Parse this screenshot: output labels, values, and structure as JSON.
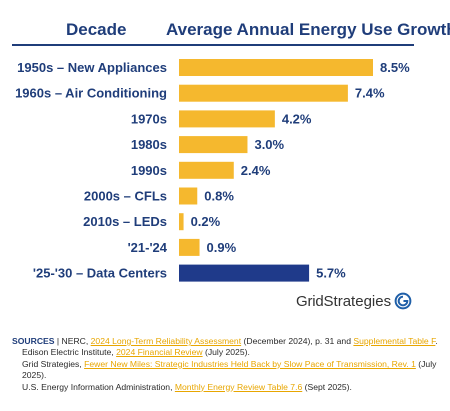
{
  "header": {
    "col1": "Decade",
    "col2": "Average Annual Energy Use Growth"
  },
  "colors": {
    "bar": "#f5b82e",
    "highlight": "#1f3a8a",
    "text": "#1f3d7a"
  },
  "chart_data": {
    "type": "bar",
    "orientation": "horizontal",
    "categories": [
      "1950s – New Appliances",
      "1960s – Air Conditioning",
      "1970s",
      "1980s",
      "1990s",
      "2000s – CFLs",
      "2010s – LEDs",
      "'21-'24",
      "'25-'30 – Data Centers"
    ],
    "values": [
      8.5,
      7.4,
      4.2,
      3.0,
      2.4,
      0.8,
      0.2,
      0.9,
      5.7
    ],
    "value_labels": [
      "8.5%",
      "7.4%",
      "4.2%",
      "3.0%",
      "2.4%",
      "0.8%",
      "0.2%",
      "0.9%",
      "5.7%"
    ],
    "highlight_index": 8,
    "xlim": [
      0,
      8.5
    ],
    "title": "",
    "xlabel": "",
    "ylabel": ""
  },
  "logo": {
    "part1": "Grid",
    "part2": "Strategies"
  },
  "sources": {
    "label": "SOURCES",
    "line1_a": " | NERC, ",
    "line1_link1": "2024 Long-Term Reliability Assessment",
    "line1_b": " (December 2024), p. 31 and ",
    "line1_link2": "Supplemental Table F",
    "line1_c": ".",
    "line2_a": "Edison Electric Institute, ",
    "line2_link": "2024 Financial Review",
    "line2_b": " (July 2025).",
    "line3_a": "Grid Strategies, ",
    "line3_link": "Fewer New Miles: Strategic Industries Held Back by Slow Pace of Transmission, Rev. 1",
    "line3_b": " (July 2025).",
    "line4_a": "U.S. Energy Information Administration, ",
    "line4_link": "Monthly Energy Review Table 7.6",
    "line4_b": " (Sept 2025)."
  }
}
